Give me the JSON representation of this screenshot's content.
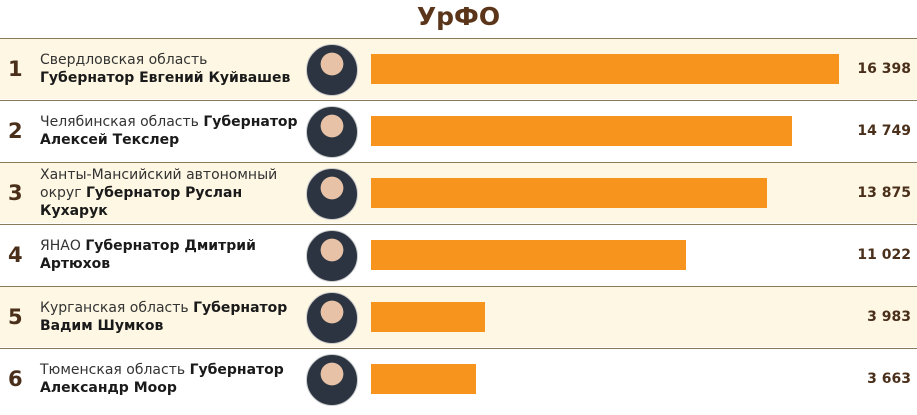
{
  "chart_data": {
    "type": "bar",
    "title": "УрФО",
    "ranks": [
      1,
      2,
      3,
      4,
      5,
      6
    ],
    "categories": [
      "Свердловская область",
      "Челябинская область",
      "Ханты-Мансийский автономный округ",
      "ЯНАО",
      "Курганская область",
      "Тюменская область"
    ],
    "governors": [
      "Губернатор Евгений Куйвашев",
      "Губернатор Алексей Текслер",
      "Губернатор Руслан Кухарук",
      "Губернатор Дмитрий Артюхов",
      "Губернатор Вадим Шумков",
      "Губернатор Александр Моор"
    ],
    "values": [
      16398,
      14749,
      13875,
      11022,
      3983,
      3663
    ],
    "value_labels": [
      "16 398",
      "14 749",
      "13 875",
      "11 022",
      "3 983",
      "3 663"
    ],
    "color": "#f7941d"
  }
}
